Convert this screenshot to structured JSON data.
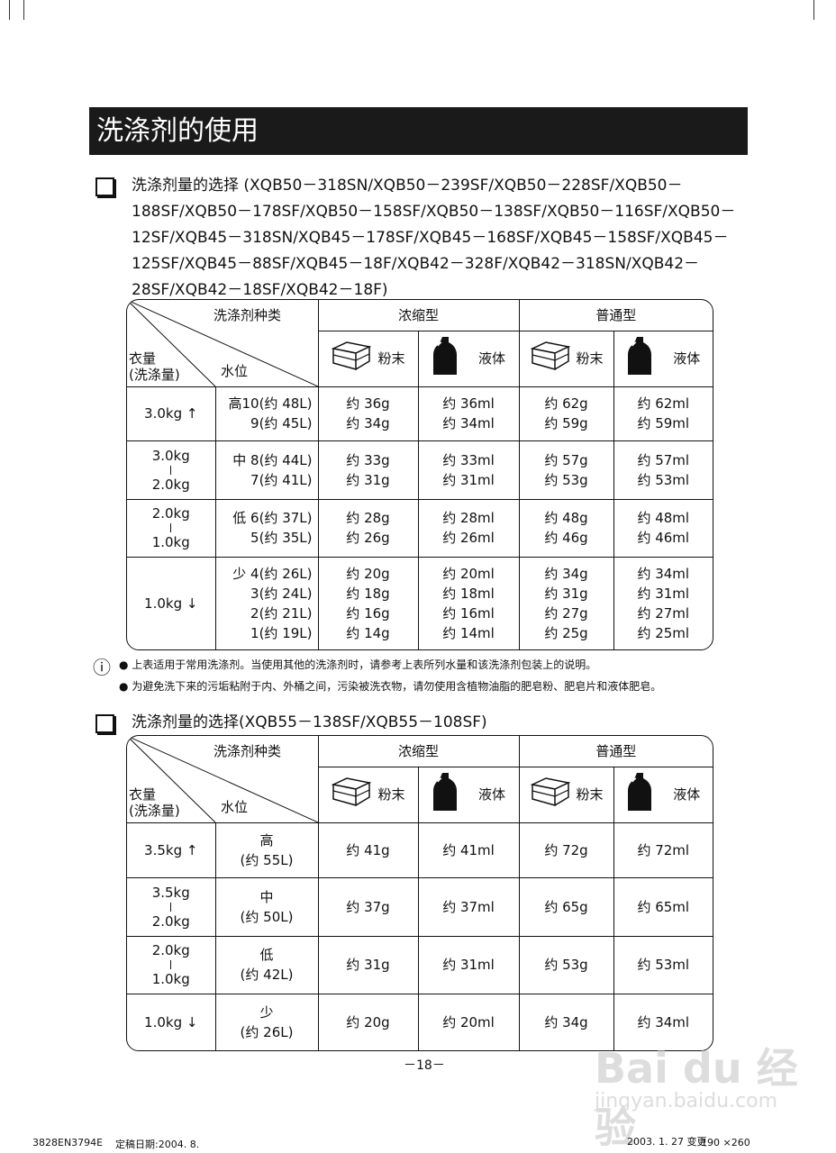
{
  "title": "洗涤剂的使用",
  "section1": {
    "heading": "洗涤剂量的选择 (XQB50－318SN/XQB50－239SF/XQB50－228SF/XQB50－188SF/XQB50－178SF/XQB50－158SF/XQB50－138SF/XQB50－116SF/XQB50－12SF/XQB45－318SN/XQB45－178SF/XQB45－168SF/XQB45－158SF/XQB45－125SF/XQB45－88SF/XQB45－18F/XQB42－328F/XQB42－318SN/XQB42－28SF/XQB42－18SF/XQB42－18F)"
  },
  "section2": {
    "heading": "洗涤剂量的选择(XQB55－138SF/XQB55－108SF)"
  },
  "header": {
    "type_label": "洗涤剂种类",
    "load_label": "衣量\n(洗涤量)",
    "water_label": "水位",
    "concentrated": "浓缩型",
    "regular": "普通型",
    "powder": "粉末",
    "liquid": "液体",
    "icons": [
      "powder-box-icon",
      "liquid-bottle-icon",
      "powder-box-icon",
      "liquid-bottle-icon"
    ]
  },
  "table1": [
    {
      "load": [
        "3.0kg ↑"
      ],
      "water": [
        "高10(约 48L)",
        "9(约 45L)"
      ],
      "values": [
        [
          "约 36g",
          "约 34g"
        ],
        [
          "约 36ml",
          "约 34ml"
        ],
        [
          "约 62g",
          "约 59g"
        ],
        [
          "约 62ml",
          "约 59ml"
        ]
      ]
    },
    {
      "load": [
        "3.0kg",
        "2.0kg"
      ],
      "water": [
        "中 8(约 44L)",
        "7(约 41L)"
      ],
      "values": [
        [
          "约 33g",
          "约 31g"
        ],
        [
          "约 33ml",
          "约 31ml"
        ],
        [
          "约 57g",
          "约 53g"
        ],
        [
          "约 57ml",
          "约 53ml"
        ]
      ]
    },
    {
      "load": [
        "2.0kg",
        "1.0kg"
      ],
      "water": [
        "低 6(约 37L)",
        "5(约 35L)"
      ],
      "values": [
        [
          "约 28g",
          "约 26g"
        ],
        [
          "约 28ml",
          "约 26ml"
        ],
        [
          "约 48g",
          "约 46g"
        ],
        [
          "约 48ml",
          "约 46ml"
        ]
      ]
    },
    {
      "load": [
        "1.0kg ↓"
      ],
      "water": [
        "少 4(约 26L)",
        "3(约 24L)",
        "2(约 21L)",
        "1(约 19L)"
      ],
      "values": [
        [
          "约 20g",
          "约 18g",
          "约 16g",
          "约 14g"
        ],
        [
          "约 20ml",
          "约 18ml",
          "约 16ml",
          "约 14ml"
        ],
        [
          "约 34g",
          "约 31g",
          "约 27g",
          "约 25g"
        ],
        [
          "约 34ml",
          "约 31ml",
          "约 27ml",
          "约 25ml"
        ]
      ]
    }
  ],
  "table2": [
    {
      "load": [
        "3.5kg ↑"
      ],
      "water": [
        "高",
        "(约 55L)"
      ],
      "values": [
        [
          "约 41g"
        ],
        [
          "约 41ml"
        ],
        [
          "约 72g"
        ],
        [
          "约 72ml"
        ]
      ]
    },
    {
      "load": [
        "3.5kg",
        "2.0kg"
      ],
      "water": [
        "中",
        "(约 50L)"
      ],
      "values": [
        [
          "约 37g"
        ],
        [
          "约 37ml"
        ],
        [
          "约 65g"
        ],
        [
          "约 65ml"
        ]
      ]
    },
    {
      "load": [
        "2.0kg",
        "1.0kg"
      ],
      "water": [
        "低",
        "(约 42L)"
      ],
      "values": [
        [
          "约 31g"
        ],
        [
          "约 31ml"
        ],
        [
          "约 53g"
        ],
        [
          "约 53ml"
        ]
      ]
    },
    {
      "load": [
        "1.0kg ↓"
      ],
      "water": [
        "少",
        "(约 26L)"
      ],
      "values": [
        [
          "约 20g"
        ],
        [
          "约 20ml"
        ],
        [
          "约 34g"
        ],
        [
          "约 34ml"
        ]
      ]
    }
  ],
  "notes": [
    "上表适用于常用洗涤剂。当使用其他的洗涤剂时，请参考上表所列水量和该洗涤剂包装上的说明。",
    "为避免洗下来的污垢粘附于内、外桶之间，污染被洗衣物，请勿使用含植物油脂的肥皂粉、肥皂片和液体肥皂。"
  ],
  "page_number": "－18－",
  "footer": {
    "code": "3828EN3794E",
    "date": "定稿日期:2004. 8.",
    "change": "2003. 1. 27 变更",
    "size": "190 ×260"
  },
  "watermark": {
    "logo": "Baidu经验",
    "url": "jingyan.baidu.com"
  }
}
